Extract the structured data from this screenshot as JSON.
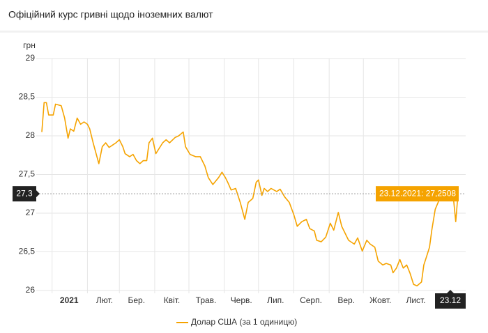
{
  "chart_data": {
    "type": "line",
    "title": "Офіційний курс гривні щодо іноземних валют",
    "ylabel": "грн",
    "xlim": [
      "2020-12-23",
      "2021-12-23"
    ],
    "ylim": [
      26,
      29
    ],
    "yticks": [
      26,
      {
        "value": 26.5,
        "label": "26,5"
      },
      27,
      {
        "value": 27.5,
        "label": "27,5"
      },
      28,
      {
        "value": 28.5,
        "label": "28,5"
      },
      29
    ],
    "xticks": [
      {
        "value": "2021-01-01",
        "label": "2021"
      },
      {
        "value": "2021-02-01",
        "label": "Лют."
      },
      {
        "value": "2021-03-01",
        "label": "Бер."
      },
      {
        "value": "2021-04-01",
        "label": "Квіт."
      },
      {
        "value": "2021-05-01",
        "label": "Трав."
      },
      {
        "value": "2021-06-01",
        "label": "Черв."
      },
      {
        "value": "2021-07-01",
        "label": "Лип."
      },
      {
        "value": "2021-08-01",
        "label": "Серп."
      },
      {
        "value": "2021-09-01",
        "label": "Вер."
      },
      {
        "value": "2021-10-01",
        "label": "Жовт."
      },
      {
        "value": "2021-11-01",
        "label": "Лист."
      }
    ],
    "grid": true,
    "x": [
      "2020-12-23",
      "2020-12-25",
      "2020-12-27",
      "2020-12-29",
      "2021-01-02",
      "2021-01-04",
      "2021-01-09",
      "2021-01-12",
      "2021-01-15",
      "2021-01-17",
      "2021-01-20",
      "2021-01-23",
      "2021-01-26",
      "2021-01-29",
      "2021-02-01",
      "2021-02-03",
      "2021-02-06",
      "2021-02-11",
      "2021-02-14",
      "2021-02-17",
      "2021-02-20",
      "2021-02-23",
      "2021-02-26",
      "2021-03-01",
      "2021-03-04",
      "2021-03-06",
      "2021-03-10",
      "2021-03-13",
      "2021-03-16",
      "2021-03-19",
      "2021-03-22",
      "2021-03-25",
      "2021-03-27",
      "2021-03-30",
      "2021-04-02",
      "2021-04-05",
      "2021-04-08",
      "2021-04-11",
      "2021-04-14",
      "2021-04-19",
      "2021-04-22",
      "2021-04-26",
      "2021-04-28",
      "2021-05-02",
      "2021-05-07",
      "2021-05-11",
      "2021-05-15",
      "2021-05-18",
      "2021-05-22",
      "2021-05-27",
      "2021-05-30",
      "2021-06-02",
      "2021-06-04",
      "2021-06-07",
      "2021-06-11",
      "2021-06-15",
      "2021-06-19",
      "2021-06-22",
      "2021-06-26",
      "2021-06-29",
      "2021-07-01",
      "2021-07-04",
      "2021-07-06",
      "2021-07-09",
      "2021-07-12",
      "2021-07-17",
      "2021-07-20",
      "2021-07-24",
      "2021-07-28",
      "2021-08-01",
      "2021-08-04",
      "2021-08-08",
      "2021-08-12",
      "2021-08-15",
      "2021-08-19",
      "2021-08-21",
      "2021-08-25",
      "2021-08-29",
      "2021-09-02",
      "2021-09-05",
      "2021-09-09",
      "2021-09-12",
      "2021-09-15",
      "2021-09-18",
      "2021-09-23",
      "2021-09-26",
      "2021-09-30",
      "2021-10-04",
      "2021-10-07",
      "2021-10-11",
      "2021-10-14",
      "2021-10-18",
      "2021-10-21",
      "2021-10-25",
      "2021-10-27",
      "2021-10-30",
      "2021-11-02",
      "2021-11-05",
      "2021-11-08",
      "2021-11-11",
      "2021-11-14",
      "2021-11-17",
      "2021-11-21",
      "2021-11-23",
      "2021-11-25",
      "2021-11-28",
      "2021-11-30",
      "2021-12-03",
      "2021-12-07",
      "2021-12-10",
      "2021-12-13",
      "2021-12-16",
      "2021-12-19",
      "2021-12-21",
      "2021-12-23"
    ],
    "series": [
      {
        "name": "Долар США (за 1 одиницю)",
        "color": "#f5a300",
        "values": [
          28.05,
          28.43,
          28.43,
          28.27,
          28.27,
          28.41,
          28.39,
          28.23,
          27.97,
          28.09,
          28.06,
          28.23,
          28.15,
          28.18,
          28.15,
          28.09,
          27.91,
          27.64,
          27.86,
          27.91,
          27.85,
          27.88,
          27.91,
          27.95,
          27.86,
          27.77,
          27.73,
          27.76,
          27.68,
          27.64,
          27.68,
          27.68,
          27.91,
          27.97,
          27.77,
          27.84,
          27.91,
          27.95,
          27.91,
          27.98,
          28.0,
          28.05,
          27.86,
          27.76,
          27.73,
          27.73,
          27.61,
          27.46,
          27.37,
          27.46,
          27.53,
          27.46,
          27.4,
          27.3,
          27.32,
          27.14,
          26.92,
          27.14,
          27.19,
          27.4,
          27.43,
          27.23,
          27.32,
          27.28,
          27.32,
          27.28,
          27.31,
          27.21,
          27.14,
          26.98,
          26.83,
          26.89,
          26.92,
          26.8,
          26.77,
          26.65,
          26.63,
          26.69,
          26.87,
          26.78,
          27.01,
          26.83,
          26.74,
          26.65,
          26.6,
          26.68,
          26.51,
          26.65,
          26.6,
          26.56,
          26.38,
          26.33,
          26.35,
          26.33,
          26.23,
          26.29,
          26.4,
          26.29,
          26.33,
          26.22,
          26.08,
          26.06,
          26.11,
          26.33,
          26.42,
          26.56,
          26.78,
          27.05,
          27.19,
          27.22,
          27.34,
          27.32,
          27.19,
          26.89,
          27.2508
        ]
      }
    ],
    "crosshair": {
      "y_label": "27,3",
      "x_label": "23.12",
      "tooltip": "23.12.2021: 27,2508"
    }
  }
}
